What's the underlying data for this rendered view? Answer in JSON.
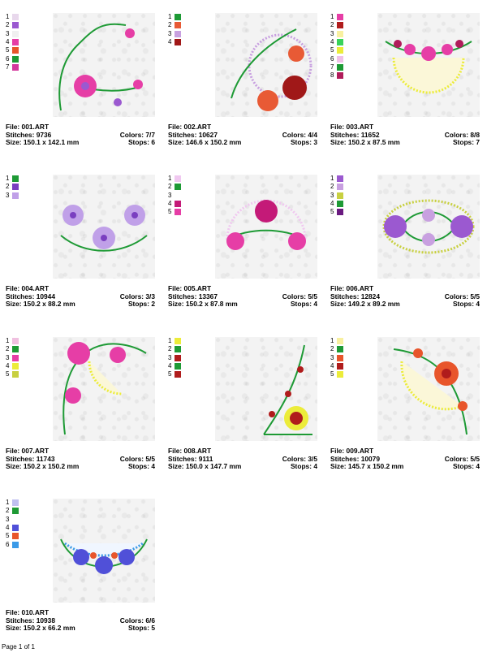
{
  "designs": [
    {
      "file": "File: 001.ART",
      "stitches": "Stitches: 9736",
      "size": "Size: 150.1 x 142.1 mm",
      "colors": "Colors: 7/7",
      "stops": "Stops: 6",
      "swatches": [
        "#e8d8ec",
        "#9b59d0",
        "#f0f0f0",
        "#e63ea6",
        "#e8552b",
        "#1e9a35",
        "#d4389c"
      ]
    },
    {
      "file": "File: 002.ART",
      "stitches": "Stitches: 10627",
      "size": "Size: 146.6 x 150.2 mm",
      "colors": "Colors: 4/4",
      "stops": "Stops: 3",
      "swatches": [
        "#1e9a35",
        "#e85a35",
        "#c8a0e0",
        "#a01818"
      ]
    },
    {
      "file": "File: 003.ART",
      "stitches": "Stitches: 11652",
      "size": "Size: 150.2 x 87.5 mm",
      "colors": "Colors: 8/8",
      "stops": "Stops: 7",
      "swatches": [
        "#e63ea6",
        "#b01c1c",
        "#f8f0a0",
        "#39d35a",
        "#ecec3a",
        "#f0c0e8",
        "#1e9a35",
        "#b01c5a"
      ]
    },
    {
      "file": "File: 004.ART",
      "stitches": "Stitches: 10944",
      "size": "Size: 150.2 x 88.2 mm",
      "colors": "Colors: 3/3",
      "stops": "Stops: 2",
      "swatches": [
        "#1e9a35",
        "#7a3fc0",
        "#c0a0e8"
      ]
    },
    {
      "file": "File: 005.ART",
      "stitches": "Stitches: 13367",
      "size": "Size: 150.2 x 87.8 mm",
      "colors": "Colors: 5/5",
      "stops": "Stops: 4",
      "swatches": [
        "#f0c8f0",
        "#1e9a35",
        "#ffffff",
        "#c41a78",
        "#e63ea6"
      ]
    },
    {
      "file": "File: 006.ART",
      "stitches": "Stitches: 12824",
      "size": "Size: 149.2 x 89.2 mm",
      "colors": "Colors: 5/5",
      "stops": "Stops: 4",
      "swatches": [
        "#9b59d0",
        "#c8a0e0",
        "#c8d040",
        "#1e9a35",
        "#6a1a80"
      ]
    },
    {
      "file": "File: 007.ART",
      "stitches": "Stitches: 11743",
      "size": "Size: 150.2 x 150.2 mm",
      "colors": "Colors: 5/5",
      "stops": "Stops: 4",
      "swatches": [
        "#f0c0e0",
        "#1e9a35",
        "#e63ea6",
        "#ecec3a",
        "#c8d040"
      ]
    },
    {
      "file": "File: 008.ART",
      "stitches": "Stitches: 9111",
      "size": "Size: 150.0 x 147.7 mm",
      "colors": "Colors: 3/5",
      "stops": "Stops: 4",
      "swatches": [
        "#ecec3a",
        "#1e9a35",
        "#b01c1c",
        "#1e9a35",
        "#b01c1c"
      ]
    },
    {
      "file": "File: 009.ART",
      "stitches": "Stitches: 10079",
      "size": "Size: 145.7 x 150.2 mm",
      "colors": "Colors: 5/5",
      "stops": "Stops: 4",
      "swatches": [
        "#f8f0a0",
        "#1e9a35",
        "#e8552b",
        "#b01c1c",
        "#ecec3a"
      ]
    },
    {
      "file": "File: 010.ART",
      "stitches": "Stitches: 10938",
      "size": "Size: 150.2 x 66.2 mm",
      "colors": "Colors: 6/6",
      "stops": "Stops: 5",
      "swatches": [
        "#c0c0f0",
        "#1e9a35",
        "#ffffff",
        "#5050d8",
        "#e8552b",
        "#3a9ae8"
      ]
    }
  ],
  "footer": "Page 1 of 1"
}
